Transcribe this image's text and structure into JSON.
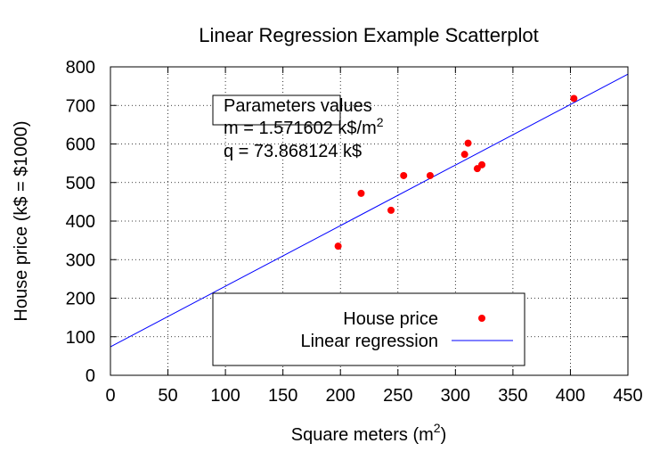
{
  "chart_data": {
    "type": "scatter",
    "title": "Linear Regression Example Scatterplot",
    "xlabel": "Square meters (m",
    "xlabel_sup": "2",
    "xlabel_end": ")",
    "ylabel": "House price (k$ = $1000)",
    "xlim": [
      0,
      450
    ],
    "ylim": [
      0,
      800
    ],
    "xticks": [
      0,
      50,
      100,
      150,
      200,
      250,
      300,
      350,
      400,
      450
    ],
    "yticks": [
      0,
      100,
      200,
      300,
      400,
      500,
      600,
      700,
      800
    ],
    "grid": true,
    "series": [
      {
        "name": "House price",
        "kind": "points",
        "color": "#ff0000",
        "x": [
          198,
          218,
          244,
          255,
          278,
          308,
          311,
          319,
          323,
          403
        ],
        "y": [
          335,
          472,
          428,
          518,
          518,
          573,
          602,
          536,
          546,
          718
        ]
      },
      {
        "name": "Linear regression",
        "kind": "line",
        "color": "#0000ff",
        "slope": 1.571602,
        "intercept": 73.868124
      }
    ],
    "legend_position": "bottom-center",
    "annotation": {
      "heading": "Parameters values",
      "m_line": "m = 1.571602 k$/m",
      "m_sup": "2",
      "q_line": "q = 73.868124 k$"
    }
  }
}
